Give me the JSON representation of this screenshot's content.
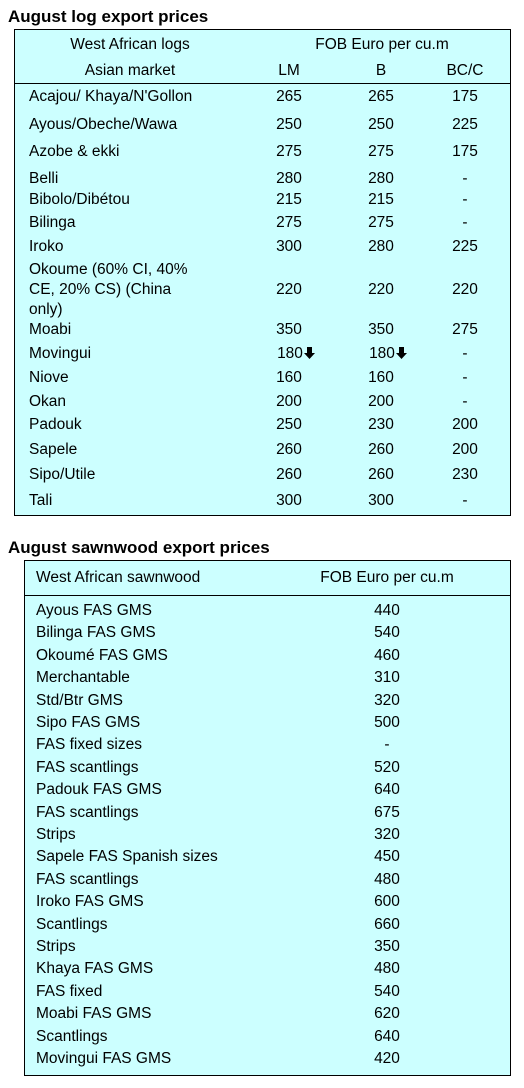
{
  "logs": {
    "title": "August log export prices",
    "header": {
      "col1_line1": "West African logs",
      "col1_line2": "Asian market",
      "price_group": "FOB Euro per cu.m",
      "lm": "LM",
      "b": "B",
      "bcc": "BC/C"
    },
    "rows": [
      {
        "name": "Acajou/ Khaya/N'Gollon",
        "lm": "265",
        "b": "265",
        "bcc": "175"
      },
      {
        "name": "Ayous/Obeche/Wawa",
        "lm": "250",
        "b": "250",
        "bcc": "225"
      },
      {
        "name": "Azobe & ekki",
        "lm": "275",
        "b": "275",
        "bcc": "175"
      },
      {
        "name": "Belli",
        "lm": "280",
        "b": "280",
        "bcc": "-"
      },
      {
        "name": "Bibolo/Dibétou",
        "lm": "215",
        "b": "215",
        "bcc": "-"
      },
      {
        "name": "Bilinga",
        "lm": "275",
        "b": "275",
        "bcc": "-"
      },
      {
        "name": "Iroko",
        "lm": "300",
        "b": "280",
        "bcc": "225"
      },
      {
        "name_lines": [
          "Okoume (60% CI, 40%",
          "CE, 20% CS) (China",
          "only)"
        ],
        "lm": "220",
        "b": "220",
        "bcc": "220"
      },
      {
        "name": "Moabi",
        "lm": "350",
        "b": "350",
        "bcc": "275"
      },
      {
        "name": "Movingui",
        "lm": "180",
        "b": "180",
        "bcc": "-",
        "trend_icon": "down-arrow-icon"
      },
      {
        "name": "Niove",
        "lm": "160",
        "b": "160",
        "bcc": "-"
      },
      {
        "name": "Okan",
        "lm": "200",
        "b": "200",
        "bcc": "-"
      },
      {
        "name": "Padouk",
        "lm": "250",
        "b": "230",
        "bcc": "200"
      },
      {
        "name": "Sapele",
        "lm": "260",
        "b": "260",
        "bcc": "200"
      },
      {
        "name": "Sipo/Utile",
        "lm": "260",
        "b": "260",
        "bcc": "230"
      },
      {
        "name": "Tali",
        "lm": "300",
        "b": "300",
        "bcc": "-"
      }
    ]
  },
  "sawn": {
    "title": "August sawnwood export prices",
    "header": {
      "col1": "West African sawnwood",
      "col2": "FOB Euro per cu.m"
    },
    "rows": [
      {
        "name": "Ayous FAS GMS",
        "price": "440"
      },
      {
        "name": "Bilinga FAS GMS",
        "price": "540"
      },
      {
        "name": "Okoumé FAS GMS",
        "price": "460"
      },
      {
        "name": "Merchantable",
        "price": "310"
      },
      {
        "name": "Std/Btr GMS",
        "price": "320"
      },
      {
        "name": "Sipo FAS GMS",
        "price": "500"
      },
      {
        "name": "FAS fixed sizes",
        "price": "-"
      },
      {
        "name": "FAS scantlings",
        "price": "520"
      },
      {
        "name": "Padouk FAS GMS",
        "price": "640"
      },
      {
        "name": "FAS scantlings",
        "price": "675"
      },
      {
        "name": "Strips",
        "price": "320"
      },
      {
        "name": "Sapele FAS Spanish sizes",
        "price": "450"
      },
      {
        "name": "FAS scantlings",
        "price": "480"
      },
      {
        "name": "Iroko FAS GMS",
        "price": "600"
      },
      {
        "name": "Scantlings",
        "price": "660"
      },
      {
        "name": "Strips",
        "price": "350"
      },
      {
        "name": "Khaya FAS GMS",
        "price": "480"
      },
      {
        "name": "FAS fixed",
        "price": "540"
      },
      {
        "name": "Moabi FAS GMS",
        "price": "620"
      },
      {
        "name": "Scantlings",
        "price": "640"
      },
      {
        "name": "Movingui FAS GMS",
        "price": "420"
      }
    ]
  },
  "colors": {
    "table_bg": "#ccffff",
    "border": "#000000"
  }
}
